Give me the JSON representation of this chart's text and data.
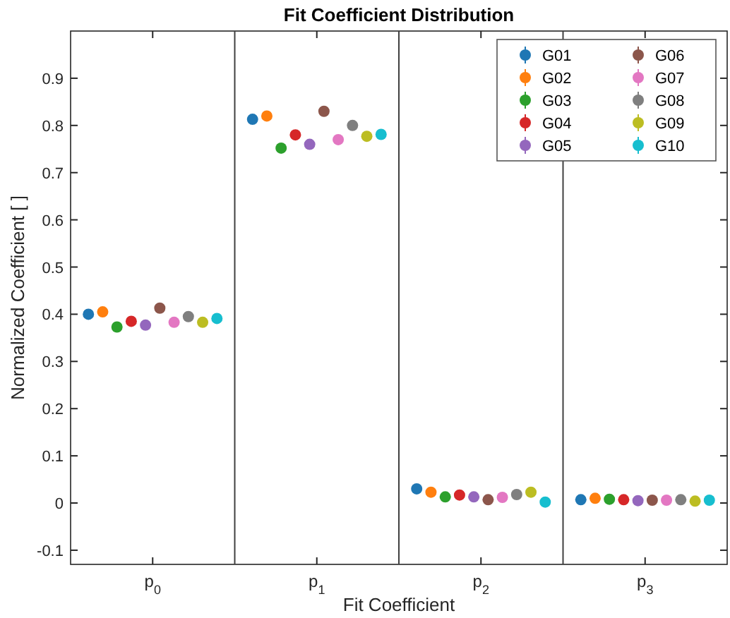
{
  "chart_data": {
    "type": "scatter",
    "title": "Fit Coefficient Distribution",
    "xlabel": "Fit Coefficient",
    "ylabel": "Normalized Coefficient [ ]",
    "categories": [
      "p$_{0}$",
      "p$_{1}$",
      "p$_{2}$",
      "p$_{3}$"
    ],
    "ylim": [
      -0.13,
      1
    ],
    "yticks": [
      -0.1,
      0,
      0.1,
      0.2,
      0.3,
      0.4,
      0.5,
      0.6,
      0.7,
      0.8,
      0.9
    ],
    "grid": false,
    "legend": "top right",
    "marker": "circle",
    "series": [
      {
        "name": "G01",
        "color": "#1f77b4",
        "values": [
          0.4,
          0.813,
          0.03,
          0.007
        ],
        "errors": [
          0.005,
          0.005,
          0.004,
          0.003
        ]
      },
      {
        "name": "G02",
        "color": "#ff7f0e",
        "values": [
          0.405,
          0.82,
          0.023,
          0.01
        ],
        "errors": [
          0.005,
          0.005,
          0.004,
          0.003
        ]
      },
      {
        "name": "G03",
        "color": "#2ca02c",
        "values": [
          0.373,
          0.752,
          0.013,
          0.008
        ],
        "errors": [
          0.005,
          0.005,
          0.004,
          0.003
        ]
      },
      {
        "name": "G04",
        "color": "#d62728",
        "values": [
          0.385,
          0.78,
          0.017,
          0.007
        ],
        "errors": [
          0.005,
          0.005,
          0.004,
          0.003
        ]
      },
      {
        "name": "G05",
        "color": "#9467bd",
        "values": [
          0.377,
          0.76,
          0.013,
          0.005
        ],
        "errors": [
          0.005,
          0.005,
          0.004,
          0.003
        ]
      },
      {
        "name": "G06",
        "color": "#8c564b",
        "values": [
          0.413,
          0.83,
          0.007,
          0.006
        ],
        "errors": [
          0.006,
          0.006,
          0.004,
          0.003
        ]
      },
      {
        "name": "G07",
        "color": "#e377c2",
        "values": [
          0.383,
          0.77,
          0.012,
          0.006
        ],
        "errors": [
          0.005,
          0.005,
          0.004,
          0.003
        ]
      },
      {
        "name": "G08",
        "color": "#7f7f7f",
        "values": [
          0.395,
          0.8,
          0.018,
          0.007
        ],
        "errors": [
          0.005,
          0.005,
          0.004,
          0.003
        ]
      },
      {
        "name": "G09",
        "color": "#bcbd22",
        "values": [
          0.383,
          0.777,
          0.023,
          0.004
        ],
        "errors": [
          0.005,
          0.005,
          0.004,
          0.003
        ]
      },
      {
        "name": "G10",
        "color": "#17becf",
        "values": [
          0.391,
          0.781,
          0.002,
          0.006
        ],
        "errors": [
          0.005,
          0.005,
          0.004,
          0.003
        ]
      }
    ]
  }
}
